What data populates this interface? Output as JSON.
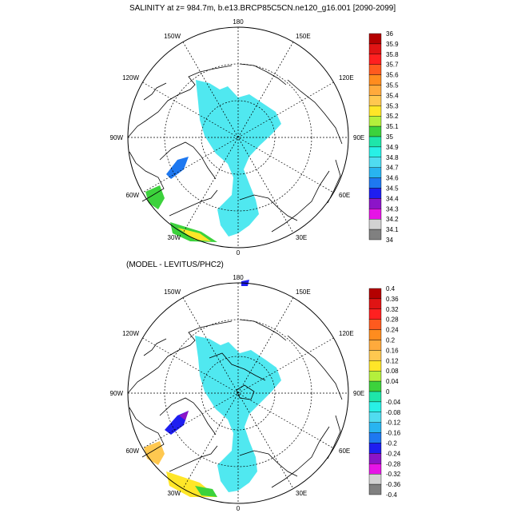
{
  "panels": [
    {
      "title": "SALINITY at z= 984.7m, b.e13.BRCP85C5CN.ne120_g16.001 [2090-2099]",
      "lon_labels": [
        "180",
        "150E",
        "120E",
        "90E",
        "60E",
        "30E",
        "0",
        "30W",
        "60W",
        "90W",
        "120W",
        "150W"
      ],
      "colorbar": {
        "labels": [
          "36",
          "35.9",
          "35.8",
          "35.7",
          "35.6",
          "35.5",
          "35.4",
          "35.3",
          "35.2",
          "35.1",
          "35",
          "34.9",
          "34.8",
          "34.7",
          "34.6",
          "34.5",
          "34.4",
          "34.3",
          "34.2",
          "34.1",
          "34"
        ],
        "colors": [
          "#b40000",
          "#e01414",
          "#ff2020",
          "#ff5a1e",
          "#ff8c1e",
          "#ffaa3c",
          "#ffc850",
          "#ffe628",
          "#b4f03c",
          "#3cd23c",
          "#1ee6aa",
          "#28f0e6",
          "#50dcf0",
          "#28b4f0",
          "#1e78f0",
          "#1e1ef0",
          "#8c14c8",
          "#e614e6",
          "#d2d2d2",
          "#808080"
        ]
      }
    },
    {
      "title": "(MODEL - LEVITUS/PHC2)",
      "lon_labels": [
        "180",
        "150E",
        "120E",
        "90E",
        "60E",
        "30E",
        "0",
        "30W",
        "60W",
        "90W",
        "120W",
        "150W"
      ],
      "colorbar": {
        "labels": [
          "0.4",
          "0.36",
          "0.32",
          "0.28",
          "0.24",
          "0.2",
          "0.16",
          "0.12",
          "0.08",
          "0.04",
          "0",
          "-0.04",
          "-0.08",
          "-0.12",
          "-0.16",
          "-0.2",
          "-0.24",
          "-0.28",
          "-0.32",
          "-0.36",
          "-0.4"
        ],
        "colors": [
          "#b40000",
          "#e01414",
          "#ff2020",
          "#ff5a1e",
          "#ff8c1e",
          "#ffaa3c",
          "#ffc850",
          "#ffe628",
          "#b4f03c",
          "#3cd23c",
          "#1ee6aa",
          "#28f0e6",
          "#50dcf0",
          "#28b4f0",
          "#1e78f0",
          "#1e1ef0",
          "#8c14c8",
          "#e614e6",
          "#d2d2d2",
          "#808080"
        ]
      }
    }
  ],
  "colors": {
    "ocean_fill": "#50e8f0",
    "coast": "#000000",
    "grid": "#000000"
  }
}
